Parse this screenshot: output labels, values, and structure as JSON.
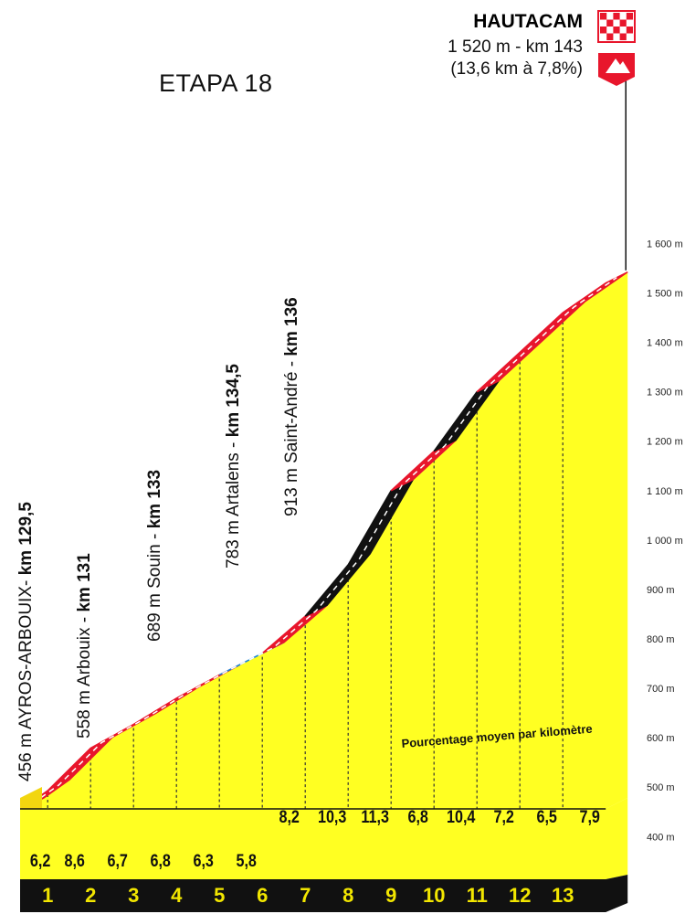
{
  "stage_title": "ETAPA 18",
  "summit": {
    "name": "HAUTACAM",
    "detail": "1 520 m - km 143",
    "climb": "(13,6 km à 7,8%)"
  },
  "legend_text": "Pourcentage moyen par kilomètre",
  "colors": {
    "profile_fill": "#ffff22",
    "profile_front": "#f2d60f",
    "band_red": "#e8162c",
    "band_black": "#111111",
    "band_blue": "#1e88d8",
    "bottom_bar": "#111111",
    "km_label": "#f2e600"
  },
  "chart_data": {
    "type": "area",
    "xlabel": "",
    "ylabel": "",
    "y_unit": "m",
    "ylim": [
      400,
      1600
    ],
    "y_ticks": [
      400,
      500,
      600,
      700,
      800,
      900,
      1000,
      1100,
      1200,
      1300,
      1400,
      1500,
      1600
    ],
    "y_tick_labels": [
      "400 m",
      "500 m",
      "600 m",
      "700 m",
      "800 m",
      "900 m",
      "1 000 m",
      "1 100 m",
      "1 200 m",
      "1 300 m",
      "1 400 m",
      "1 500 m",
      "1 600 m"
    ],
    "km_markers": [
      "1",
      "2",
      "3",
      "4",
      "5",
      "6",
      "7",
      "8",
      "9",
      "10",
      "11",
      "12",
      "13"
    ],
    "km_gradients": [
      "6,2",
      "8,6",
      "6,7",
      "6,8",
      "6,3",
      "5,8",
      "8,2",
      "10,3",
      "11,3",
      "6,8",
      "10,4",
      "7,2",
      "6,5",
      "7,9"
    ],
    "profile": {
      "x": [
        0,
        0.6,
        1.6,
        2.6,
        3.6,
        4.6,
        5.6,
        6.6,
        7.6,
        8.6,
        9.6,
        10.6,
        11.6,
        12.6,
        13.6
      ],
      "y": [
        456,
        493,
        579,
        627,
        680,
        727,
        771,
        846,
        950,
        1100,
        1180,
        1300,
        1380,
        1460,
        1520
      ]
    },
    "segments": [
      {
        "from": 0,
        "to": 4.6,
        "class": "red"
      },
      {
        "from": 4.6,
        "to": 5.6,
        "class": "blue"
      },
      {
        "from": 5.6,
        "to": 6.6,
        "class": "red"
      },
      {
        "from": 6.6,
        "to": 8.6,
        "class": "black"
      },
      {
        "from": 8.6,
        "to": 9.6,
        "class": "red"
      },
      {
        "from": 9.6,
        "to": 10.6,
        "class": "black"
      },
      {
        "from": 10.6,
        "to": 13.6,
        "class": "red"
      }
    ],
    "places": [
      {
        "name": "456 m AYROS-ARBOUIX- ",
        "km": "km 129,5"
      },
      {
        "name": "558 m Arbouix - ",
        "km": "km 131"
      },
      {
        "name": "689 m Souin - ",
        "km": "km 133"
      },
      {
        "name": "783 m Artalens - ",
        "km": "km 134,5"
      },
      {
        "name": "913 m Saint-André - ",
        "km": "km 136"
      }
    ]
  }
}
